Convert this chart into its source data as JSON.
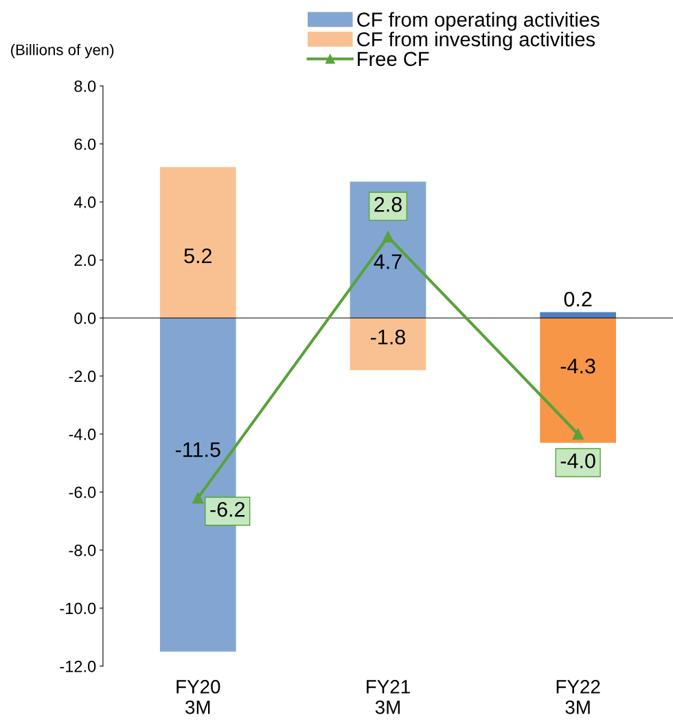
{
  "chart_data": {
    "type": "bar",
    "stacked": true,
    "ylabel": "(Billions of yen)",
    "categories": [
      "FY20\n3M",
      "FY21\n3M",
      "FY22\n3M"
    ],
    "series": [
      {
        "name": "CF from operating activities",
        "color": "#82a6d1",
        "colors": [
          "#82a6d1",
          "#82a6d1",
          "#4f7fc0"
        ],
        "values": [
          -11.5,
          4.7,
          0.2
        ]
      },
      {
        "name": "CF from investing activities",
        "color": "#f9c192",
        "colors": [
          "#f9c192",
          "#f9c192",
          "#f79646"
        ],
        "values": [
          5.2,
          -1.8,
          -4.3
        ]
      },
      {
        "name": "Free CF",
        "type": "line",
        "color": "#59a23a",
        "marker": "triangle",
        "values": [
          -6.2,
          2.8,
          -4.0
        ],
        "value_labels": [
          "-6.2",
          "2.8",
          "-4.0"
        ]
      }
    ],
    "ylim": [
      -12,
      8
    ],
    "yticks": [
      {
        "value": -12,
        "label": "-12.0"
      },
      {
        "value": -10,
        "label": "-10.0"
      },
      {
        "value": -8,
        "label": "-8.0"
      },
      {
        "value": -6,
        "label": "-6.0"
      },
      {
        "value": -4,
        "label": "-4.0"
      },
      {
        "value": -2,
        "label": "-2.0"
      },
      {
        "value": 0,
        "label": "0.0"
      },
      {
        "value": 2,
        "label": "2.0"
      },
      {
        "value": 4,
        "label": "4.0"
      },
      {
        "value": 6,
        "label": "6.0"
      },
      {
        "value": 8,
        "label": "8.0"
      }
    ],
    "data_labels": true,
    "legend": "top"
  }
}
